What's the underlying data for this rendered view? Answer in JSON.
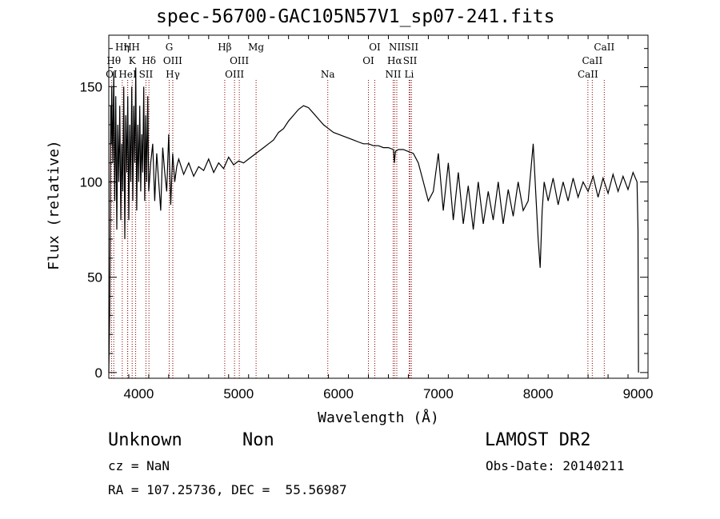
{
  "chart_data": {
    "type": "line",
    "title": "spec-56700-GAC105N57V1_sp07-241.fits",
    "xlabel": "Wavelength (Å)",
    "ylabel": "Flux (relative)",
    "xlim": [
      3700,
      9100
    ],
    "ylim": [
      -3,
      177
    ],
    "xticks": [
      4000,
      5000,
      6000,
      7000,
      8000,
      9000
    ],
    "yticks": [
      0,
      50,
      100,
      150
    ],
    "grid": false,
    "line_color": "#000000",
    "marker_color": "#8b0000",
    "series": [
      {
        "x": [
          3700,
          3710,
          3715,
          3720,
          3725,
          3730,
          3740,
          3750,
          3760,
          3770,
          3780,
          3790,
          3800,
          3810,
          3820,
          3830,
          3840,
          3850,
          3860,
          3870,
          3880,
          3890,
          3900,
          3910,
          3920,
          3930,
          3940,
          3950,
          3960,
          3970,
          3980,
          3990,
          4000,
          4010,
          4020,
          4030,
          4040,
          4050,
          4060,
          4070,
          4080,
          4090,
          4100,
          4120,
          4140,
          4160,
          4180,
          4200,
          4220,
          4240,
          4260,
          4280,
          4300,
          4320,
          4340,
          4360,
          4380,
          4400,
          4450,
          4500,
          4550,
          4600,
          4650,
          4700,
          4750,
          4800,
          4850,
          4900,
          4950,
          5000,
          5050,
          5100,
          5150,
          5200,
          5250,
          5300,
          5350,
          5400,
          5450,
          5500,
          5550,
          5600,
          5650,
          5700,
          5750,
          5800,
          5850,
          5900,
          5950,
          6000,
          6050,
          6100,
          6150,
          6200,
          6250,
          6300,
          6350,
          6400,
          6450,
          6500,
          6550,
          6560,
          6570,
          6600,
          6650,
          6700,
          6750,
          6800,
          6850,
          6900,
          6950,
          7000,
          7050,
          7100,
          7150,
          7200,
          7250,
          7300,
          7350,
          7400,
          7450,
          7500,
          7550,
          7600,
          7650,
          7700,
          7750,
          7800,
          7850,
          7900,
          7950,
          8000,
          8020,
          8040,
          8060,
          8100,
          8150,
          8200,
          8250,
          8300,
          8350,
          8400,
          8450,
          8500,
          8550,
          8600,
          8650,
          8700,
          8750,
          8800,
          8850,
          8900,
          8950,
          8990,
          9000,
          9005
        ],
        "y": [
          0,
          35,
          95,
          140,
          120,
          150,
          110,
          158,
          90,
          145,
          75,
          130,
          100,
          140,
          80,
          120,
          95,
          150,
          70,
          135,
          105,
          145,
          80,
          130,
          100,
          150,
          90,
          140,
          110,
          160,
          85,
          130,
          100,
          140,
          95,
          125,
          105,
          150,
          90,
          135,
          100,
          145,
          95,
          110,
          120,
          90,
          115,
          100,
          85,
          118,
          105,
          95,
          125,
          88,
          115,
          100,
          108,
          112,
          104,
          110,
          103,
          108,
          106,
          112,
          105,
          110,
          107,
          113,
          109,
          111,
          110,
          112,
          114,
          116,
          118,
          120,
          122,
          126,
          128,
          132,
          135,
          138,
          140,
          139,
          136,
          133,
          130,
          128,
          126,
          125,
          124,
          123,
          122,
          121,
          120,
          120,
          119,
          119,
          118,
          118,
          117,
          110,
          116,
          117,
          117,
          116,
          115,
          110,
          100,
          90,
          95,
          115,
          85,
          110,
          80,
          105,
          78,
          98,
          75,
          100,
          78,
          95,
          80,
          100,
          78,
          96,
          82,
          100,
          85,
          90,
          120,
          70,
          55,
          85,
          100,
          90,
          102,
          88,
          100,
          90,
          102,
          92,
          100,
          95,
          103,
          92,
          102,
          94,
          104,
          95,
          103,
          96,
          105,
          100,
          75,
          0
        ]
      }
    ],
    "lines": [
      {
        "label": "OI",
        "x": 3727,
        "row": 3
      },
      {
        "label": "Hθ",
        "x": 3750,
        "row": 2
      },
      {
        "label": "Hη",
        "x": 3835,
        "row": 1
      },
      {
        "label": "H",
        "x": 3889,
        "row": 1
      },
      {
        "label": "HeI",
        "x": 3889,
        "row": 3
      },
      {
        "label": "K",
        "x": 3934,
        "row": 2
      },
      {
        "label": "H",
        "x": 3969,
        "row": 1
      },
      {
        "label": "SII",
        "x": 4072,
        "row": 3
      },
      {
        "label": "Hδ",
        "x": 4102,
        "row": 2
      },
      {
        "label": "G",
        "x": 4305,
        "row": 1
      },
      {
        "label": "OIII",
        "x": 4340,
        "row": 2
      },
      {
        "label": "Hγ",
        "x": 4341,
        "row": 3
      },
      {
        "label": "Hβ",
        "x": 4861,
        "row": 1
      },
      {
        "label": "OIII",
        "x": 4959,
        "row": 3
      },
      {
        "label": "OIII",
        "x": 5007,
        "row": 2
      },
      {
        "label": "Mg",
        "x": 5175,
        "row": 1
      },
      {
        "label": "Na",
        "x": 5893,
        "row": 3
      },
      {
        "label": "OI",
        "x": 6300,
        "row": 2
      },
      {
        "label": "OI",
        "x": 6364,
        "row": 1
      },
      {
        "label": "NII",
        "x": 6548,
        "row": 3
      },
      {
        "label": "NII",
        "x": 6584,
        "row": 1
      },
      {
        "label": "Hα",
        "x": 6563,
        "row": 2
      },
      {
        "label": "SII",
        "x": 6717,
        "row": 2
      },
      {
        "label": "SII",
        "x": 6731,
        "row": 1
      },
      {
        "label": "Li",
        "x": 6708,
        "row": 3
      },
      {
        "label": "CaII",
        "x": 8498,
        "row": 3
      },
      {
        "label": "CaII",
        "x": 8542,
        "row": 2
      },
      {
        "label": "CaII",
        "x": 8662,
        "row": 1
      }
    ]
  },
  "info": {
    "class": "Unknown",
    "subclass": "Non",
    "survey": "LAMOST DR2",
    "cz": "cz = NaN",
    "obsdate": "Obs-Date: 20140211",
    "radec": "RA = 107.25736, DEC =  55.56987"
  }
}
